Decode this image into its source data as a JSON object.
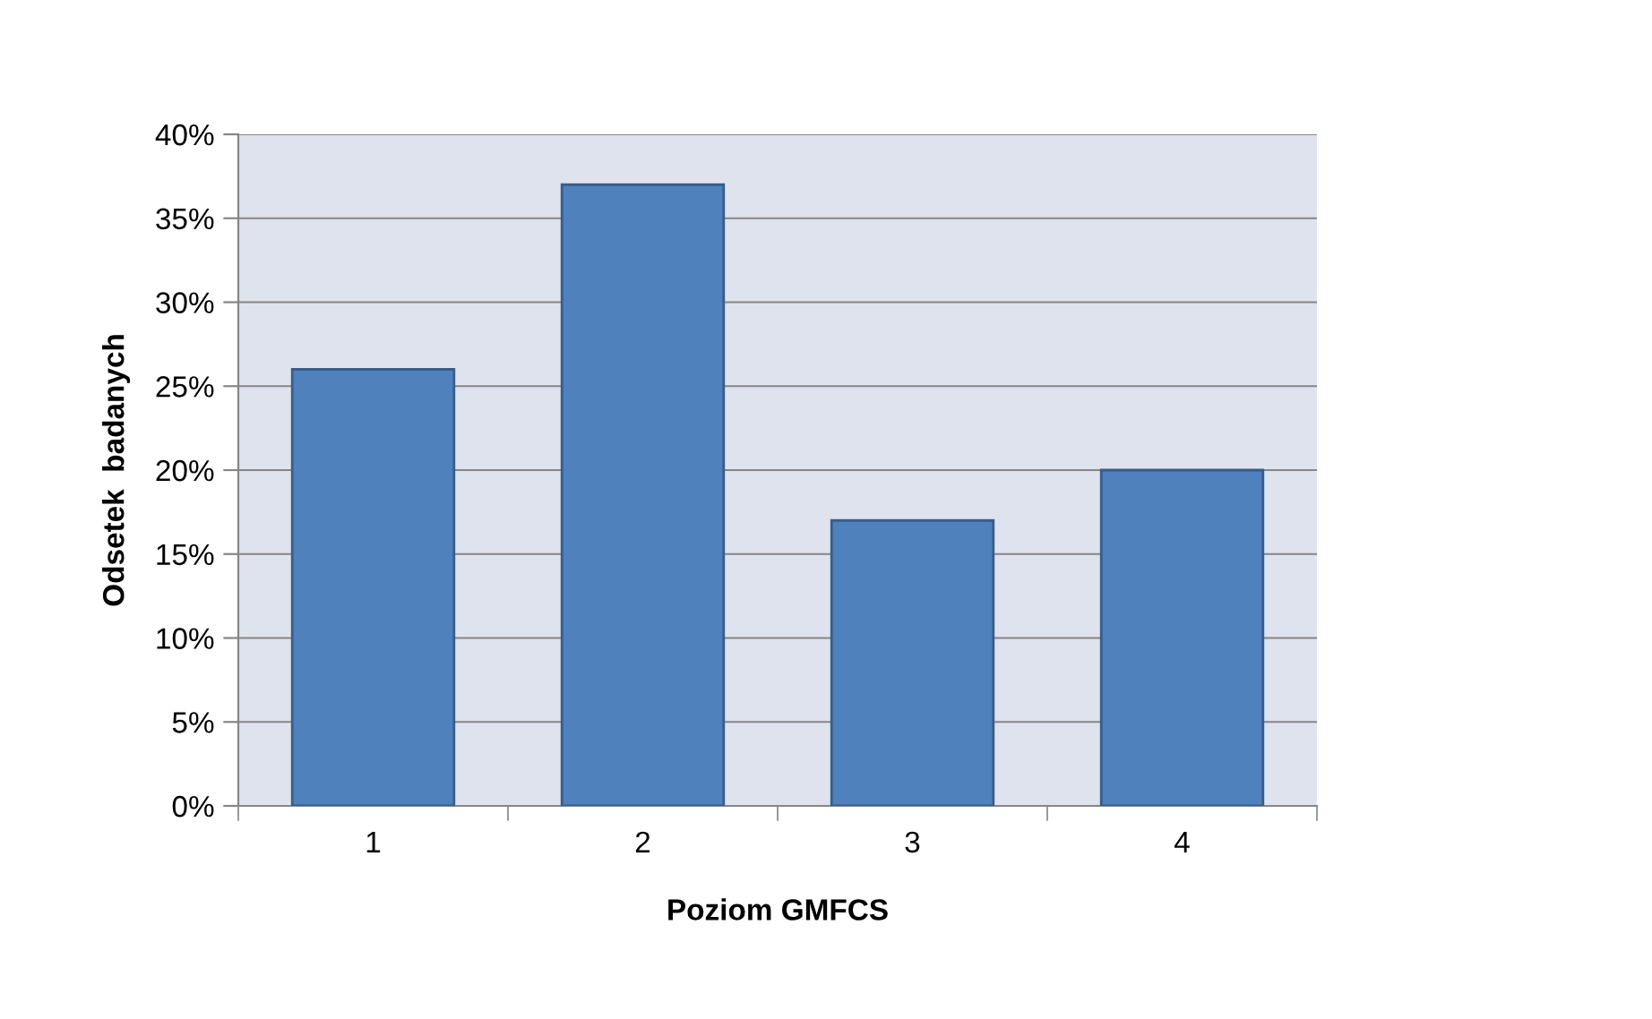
{
  "chart_data": {
    "type": "bar",
    "xlabel": "Poziom GMFCS",
    "ylabel": "Odsetek  badanych",
    "categories": [
      "1",
      "2",
      "3",
      "4"
    ],
    "series": [
      {
        "color": "#4f81bd",
        "values": [
          26,
          37,
          17,
          20
        ]
      }
    ],
    "ylim": [
      0,
      40
    ],
    "yticks": [
      {
        "value": 0,
        "label": "0%"
      },
      {
        "value": 5,
        "label": "5%"
      },
      {
        "value": 10,
        "label": "10%"
      },
      {
        "value": 15,
        "label": "15%"
      },
      {
        "value": 20,
        "label": "20%"
      },
      {
        "value": 25,
        "label": "25%"
      },
      {
        "value": 30,
        "label": "30%"
      },
      {
        "value": 35,
        "label": "35%"
      },
      {
        "value": 40,
        "label": "40%"
      }
    ],
    "grid": "y",
    "legend": false
  }
}
